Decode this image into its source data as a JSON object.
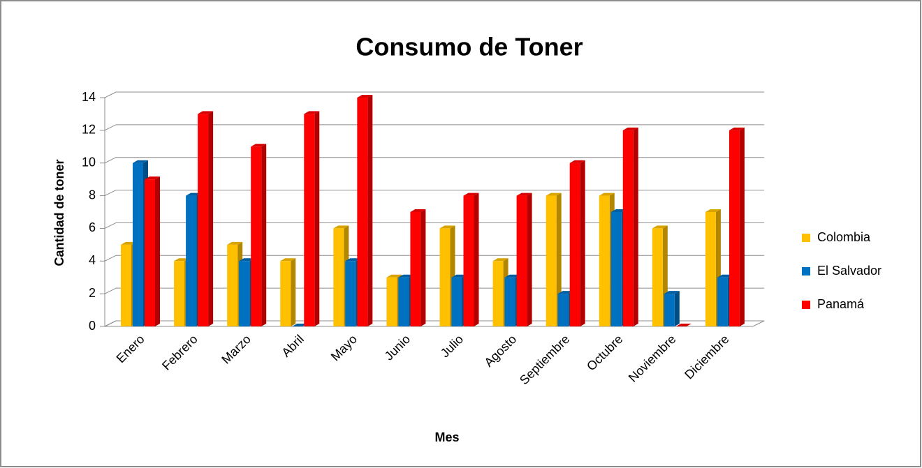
{
  "chart_data": {
    "type": "bar",
    "title": "Consumo de Toner",
    "x_label": "Mes",
    "y_label": "Cantidad  de toner",
    "categories": [
      "Enero",
      "Febrero",
      "Marzo",
      "Abril",
      "Mayo",
      "Junio",
      "Julio",
      "Agosto",
      "Septiembre",
      "Octubre",
      "Noviembre",
      "Diciembre"
    ],
    "series": [
      {
        "name": "Colombia",
        "color": "#FFC000",
        "values": [
          5,
          4,
          5,
          4,
          6,
          3,
          6,
          4,
          8,
          8,
          6,
          7
        ]
      },
      {
        "name": "El Salvador",
        "color": "#0070C0",
        "values": [
          10,
          8,
          4,
          0,
          4,
          3,
          3,
          3,
          2,
          7,
          2,
          3
        ]
      },
      {
        "name": "Panamá",
        "color": "#FF0000",
        "values": [
          9,
          13,
          11,
          13,
          14,
          7,
          8,
          8,
          10,
          12,
          0,
          12
        ]
      }
    ],
    "ylim": [
      0,
      14
    ],
    "yticks": [
      0,
      2,
      4,
      6,
      8,
      10,
      12,
      14
    ],
    "grid": true,
    "legend": "right"
  }
}
